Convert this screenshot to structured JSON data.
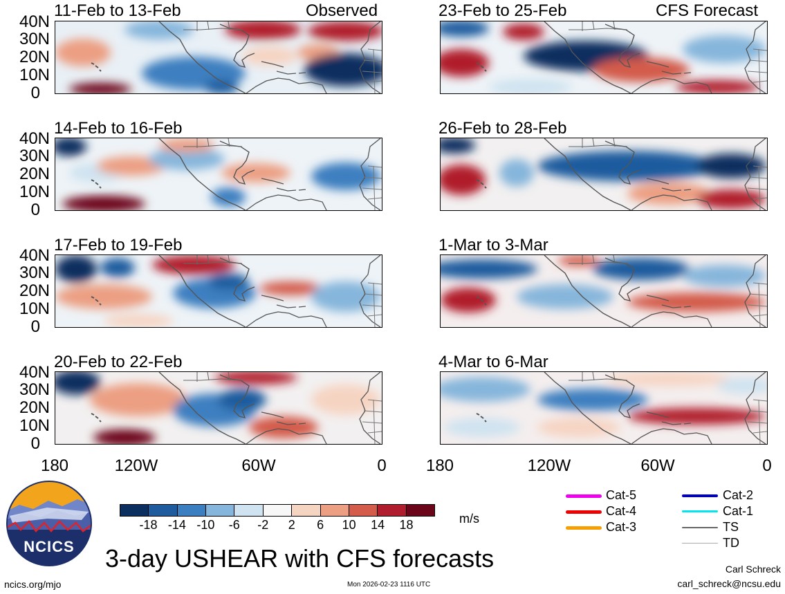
{
  "panels": [
    {
      "date": "11-Feb to 13-Feb",
      "tag": "Observed"
    },
    {
      "date": "23-Feb to 25-Feb",
      "tag": "CFS Forecast"
    },
    {
      "date": "14-Feb to 16-Feb",
      "tag": ""
    },
    {
      "date": "26-Feb to 28-Feb",
      "tag": ""
    },
    {
      "date": "17-Feb to 19-Feb",
      "tag": ""
    },
    {
      "date": "1-Mar to 3-Mar",
      "tag": ""
    },
    {
      "date": "20-Feb to 22-Feb",
      "tag": ""
    },
    {
      "date": "4-Mar to 6-Mar",
      "tag": ""
    }
  ],
  "y_ticks": [
    "40N",
    "30N",
    "20N",
    "10N",
    "0"
  ],
  "x_ticks": [
    "180",
    "120W",
    "60W",
    "0"
  ],
  "colorbar": {
    "labels": [
      "-18",
      "-14",
      "-10",
      "-6",
      "-2",
      "2",
      "6",
      "10",
      "14",
      "18"
    ],
    "colors": [
      "#0b2f5e",
      "#1f5c9e",
      "#3c7fc0",
      "#86b6db",
      "#cfe3f0",
      "#f7f7f7",
      "#f6d4c2",
      "#ec9f82",
      "#d35c4b",
      "#b01d2c",
      "#6b0519"
    ],
    "unit": "m/s"
  },
  "legend": [
    {
      "label": "Cat-5",
      "color": "#ee00ee"
    },
    {
      "label": "Cat-4",
      "color": "#ee0000"
    },
    {
      "label": "Cat-3",
      "color": "#f5a000"
    },
    {
      "label": "Cat-2",
      "color": "#0000cc"
    },
    {
      "label": "Cat-1",
      "color": "#00e5ee"
    },
    {
      "label": "TS",
      "color": "#666666"
    },
    {
      "label": "TD",
      "color": "#aaaaaa"
    }
  ],
  "title": "3-day USHEAR with CFS forecasts",
  "logo_text": "NCICS",
  "footer": {
    "left": "ncics.org/mjo",
    "center": "Mon 2026-02-23 1116 UTC",
    "author": "Carl Schreck",
    "email": "carl_schreck@ncsu.edu"
  }
}
